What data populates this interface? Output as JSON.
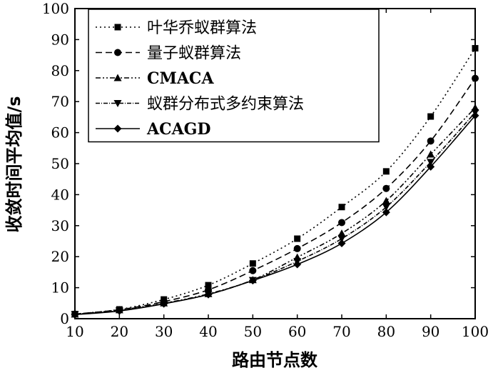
{
  "chart_data": {
    "type": "line",
    "title": "",
    "xlabel": "路由节点数",
    "ylabel": "收敛时间平均值/s",
    "x": [
      10,
      20,
      30,
      40,
      50,
      60,
      70,
      80,
      90,
      100
    ],
    "xlim": [
      10,
      100
    ],
    "ylim": [
      0,
      100
    ],
    "xticks": [
      "10",
      "20",
      "30",
      "40",
      "50",
      "60",
      "70",
      "80",
      "90",
      "100"
    ],
    "yticks": [
      "0",
      "10",
      "20",
      "30",
      "40",
      "50",
      "60",
      "70",
      "80",
      "90",
      "100"
    ],
    "grid": false,
    "legend_position": "top-left",
    "series": [
      {
        "name": "叶华乔蚁群算法",
        "marker": "square",
        "dash": "2,4",
        "values": [
          1.5,
          3.0,
          6.2,
          10.8,
          17.8,
          25.8,
          36.0,
          47.5,
          65.2,
          87.2
        ]
      },
      {
        "name": "量子蚁群算法",
        "marker": "circle",
        "dash": "9,5",
        "values": [
          1.5,
          2.9,
          5.5,
          9.3,
          15.5,
          22.6,
          31.0,
          42.0,
          57.3,
          77.5
        ]
      },
      {
        "name": "CMACA",
        "marker": "triangle-up",
        "dash": "7,3,2,3,2,3",
        "values": [
          1.4,
          2.8,
          5.0,
          8.0,
          12.5,
          19.8,
          27.5,
          38.0,
          53.0,
          68.0
        ]
      },
      {
        "name": "蚁群分布式多约束算法",
        "marker": "triangle-down",
        "dash": "6,2,1,2",
        "values": [
          1.4,
          2.6,
          4.9,
          7.8,
          12.4,
          18.5,
          25.8,
          36.0,
          50.5,
          66.5
        ]
      },
      {
        "name": "ACAGD",
        "marker": "diamond",
        "dash": "",
        "values": [
          1.3,
          2.5,
          4.8,
          7.8,
          12.3,
          17.5,
          24.3,
          34.3,
          49.0,
          65.5
        ]
      }
    ]
  }
}
